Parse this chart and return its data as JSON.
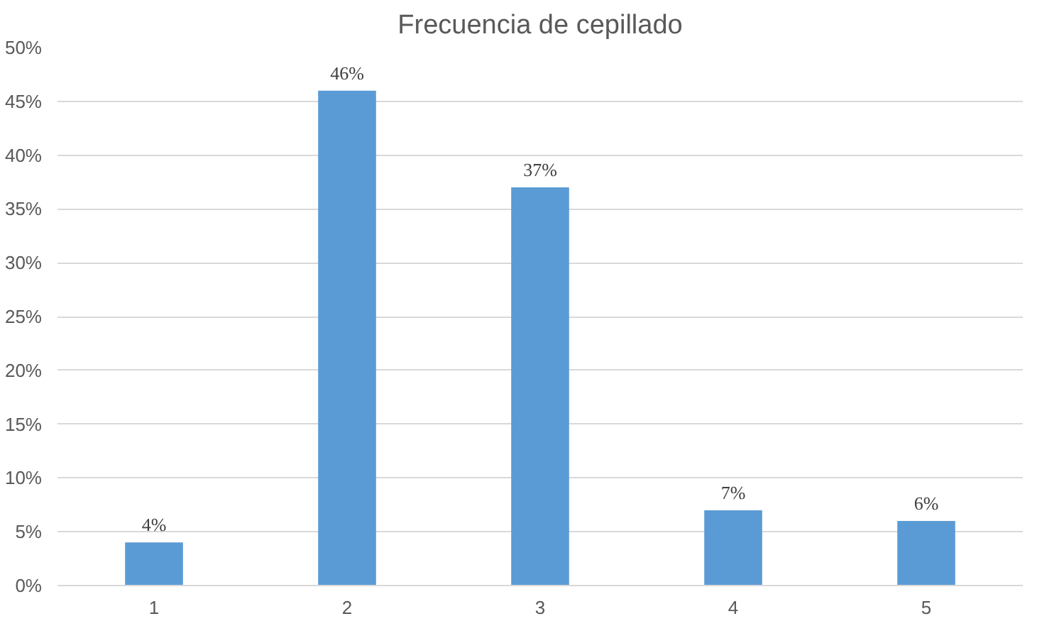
{
  "chart_data": {
    "type": "bar",
    "title": "Frecuencia de cepillado",
    "categories": [
      "1",
      "2",
      "3",
      "4",
      "5"
    ],
    "values": [
      4,
      46,
      37,
      7,
      6
    ],
    "value_labels": [
      "4%",
      "46%",
      "37%",
      "7%",
      "6%"
    ],
    "color": "#5b9bd5",
    "ylim": [
      0,
      50
    ],
    "yticks": [
      {
        "value": 0,
        "label": "0%"
      },
      {
        "value": 5,
        "label": "5%"
      },
      {
        "value": 10,
        "label": "10%"
      },
      {
        "value": 15,
        "label": "15%"
      },
      {
        "value": 20,
        "label": "20%"
      },
      {
        "value": 25,
        "label": "25%"
      },
      {
        "value": 30,
        "label": "30%"
      },
      {
        "value": 35,
        "label": "35%"
      },
      {
        "value": 40,
        "label": "40%"
      },
      {
        "value": 45,
        "label": "45%"
      },
      {
        "value": 50,
        "label": "50%"
      }
    ],
    "grid": "y"
  }
}
